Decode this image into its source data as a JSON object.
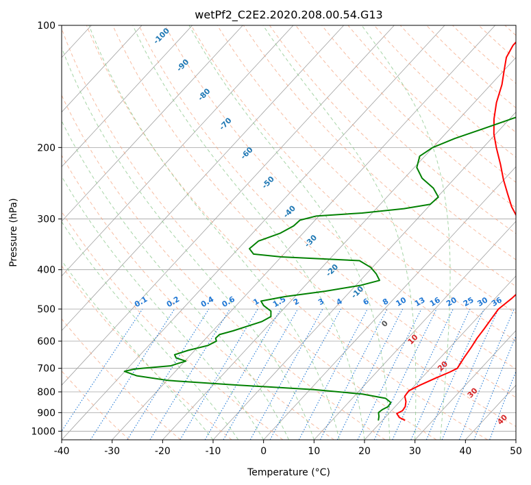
{
  "chart_data": {
    "type": "line",
    "subtype": "skew-t log-p diagram",
    "title": "wetPf2_C2E2.2020.208.00.54.G13",
    "xlabel": "Temperature (°C)",
    "ylabel": "Pressure (hPa)",
    "xlim": [
      -40,
      50
    ],
    "ylim": [
      1050,
      100
    ],
    "yscale": "log",
    "grid": true,
    "xticks": [
      "-40",
      "-30",
      "-20",
      "-10",
      "0",
      "10",
      "20",
      "30",
      "40",
      "50"
    ],
    "yticks": [
      "100",
      "200",
      "300",
      "400",
      "500",
      "600",
      "700",
      "800",
      "900",
      "1000"
    ],
    "series": [
      {
        "role": "temperature",
        "color": "#ff0000",
        "points": [
          [
            941,
            24.5
          ],
          [
            925,
            22.8
          ],
          [
            905,
            21.6
          ],
          [
            890,
            22.2
          ],
          [
            870,
            22.0
          ],
          [
            845,
            21.2
          ],
          [
            820,
            20.0
          ],
          [
            795,
            19.8
          ],
          [
            770,
            21.0
          ],
          [
            740,
            22.8
          ],
          [
            715,
            24.5
          ],
          [
            700,
            25.3
          ],
          [
            660,
            24.7
          ],
          [
            620,
            24.2
          ],
          [
            590,
            23.7
          ],
          [
            560,
            23.4
          ],
          [
            530,
            23.0
          ],
          [
            500,
            22.6
          ],
          [
            470,
            23.3
          ],
          [
            445,
            23.6
          ],
          [
            420,
            22.3
          ],
          [
            400,
            20.7
          ],
          [
            370,
            17.6
          ],
          [
            345,
            15.6
          ],
          [
            325,
            13.6
          ],
          [
            300,
            10.0
          ],
          [
            280,
            6.5
          ],
          [
            260,
            3.3
          ],
          [
            240,
            -0.1
          ],
          [
            220,
            -3.5
          ],
          [
            200,
            -7.4
          ],
          [
            185,
            -10.4
          ],
          [
            170,
            -13.1
          ],
          [
            155,
            -15.6
          ],
          [
            140,
            -17.8
          ],
          [
            128,
            -20.2
          ],
          [
            120,
            -21.9
          ],
          [
            112,
            -22.8
          ],
          [
            106,
            -22.8
          ],
          [
            100,
            -22.4
          ]
        ]
      },
      {
        "role": "dewpoint",
        "color": "#008000",
        "points": [
          [
            941,
            19.2
          ],
          [
            920,
            18.6
          ],
          [
            900,
            17.8
          ],
          [
            885,
            18.0
          ],
          [
            870,
            18.6
          ],
          [
            850,
            18.4
          ],
          [
            830,
            16.6
          ],
          [
            810,
            11.2
          ],
          [
            790,
            0.8
          ],
          [
            770,
            -15.0
          ],
          [
            750,
            -29.7
          ],
          [
            730,
            -36.9
          ],
          [
            712,
            -40.1
          ],
          [
            703,
            -38.5
          ],
          [
            700,
            -37.1
          ],
          [
            690,
            -31.9
          ],
          [
            680,
            -30.8
          ],
          [
            672,
            -29.8
          ],
          [
            660,
            -32.3
          ],
          [
            648,
            -33.2
          ],
          [
            632,
            -31.3
          ],
          [
            615,
            -28.3
          ],
          [
            600,
            -27.4
          ],
          [
            590,
            -28.1
          ],
          [
            578,
            -28.0
          ],
          [
            566,
            -26.0
          ],
          [
            552,
            -24.1
          ],
          [
            537,
            -22.0
          ],
          [
            522,
            -21.1
          ],
          [
            506,
            -22.1
          ],
          [
            490,
            -24.6
          ],
          [
            478,
            -25.9
          ],
          [
            466,
            -22.0
          ],
          [
            452,
            -15.0
          ],
          [
            437,
            -9.0
          ],
          [
            425,
            -6.2
          ],
          [
            410,
            -8.0
          ],
          [
            395,
            -10.3
          ],
          [
            380,
            -13.8
          ],
          [
            372,
            -30.0
          ],
          [
            366,
            -36.0
          ],
          [
            355,
            -37.8
          ],
          [
            340,
            -37.4
          ],
          [
            325,
            -34.5
          ],
          [
            312,
            -33.2
          ],
          [
            302,
            -33.0
          ],
          [
            295,
            -30.5
          ],
          [
            290,
            -22.0
          ],
          [
            283,
            -14.5
          ],
          [
            276,
            -10.1
          ],
          [
            265,
            -9.8
          ],
          [
            252,
            -12.4
          ],
          [
            238,
            -16.5
          ],
          [
            224,
            -19.5
          ],
          [
            210,
            -21.0
          ],
          [
            200,
            -20.0
          ],
          [
            190,
            -17.3
          ],
          [
            180,
            -13.5
          ],
          [
            168,
            -8.8
          ],
          [
            155,
            -5.2
          ],
          [
            140,
            -3.0
          ],
          [
            125,
            -1.7
          ],
          [
            112,
            -1.8
          ],
          [
            105,
            -1.6
          ],
          [
            100,
            -0.2
          ]
        ]
      }
    ],
    "dry_adiabat_labels": [
      "-100",
      "-90",
      "-80",
      "-70",
      "-60",
      "-50",
      "-40",
      "-30",
      "-20",
      "-10",
      "0",
      "10",
      "20",
      "30",
      "40"
    ],
    "mixing_ratio_labels": [
      "0.1",
      "0.2",
      "0.4",
      "0.6",
      "1",
      "1.5",
      "2",
      "3",
      "4",
      "6",
      "8",
      "10",
      "13",
      "16",
      "20",
      "25",
      "30",
      "36"
    ],
    "colors": {
      "temperature": "#ff0000",
      "dewpoint": "#008000",
      "isotherm": "#a0a0a0",
      "isobar": "#a0a0a0",
      "dry_adiabat": "#f4a582",
      "moist_adiabat": "#8fc98f",
      "mixing_ratio": "#1f77d4",
      "cold_label": "#1f78b4",
      "warm_label": "#d62728"
    }
  }
}
